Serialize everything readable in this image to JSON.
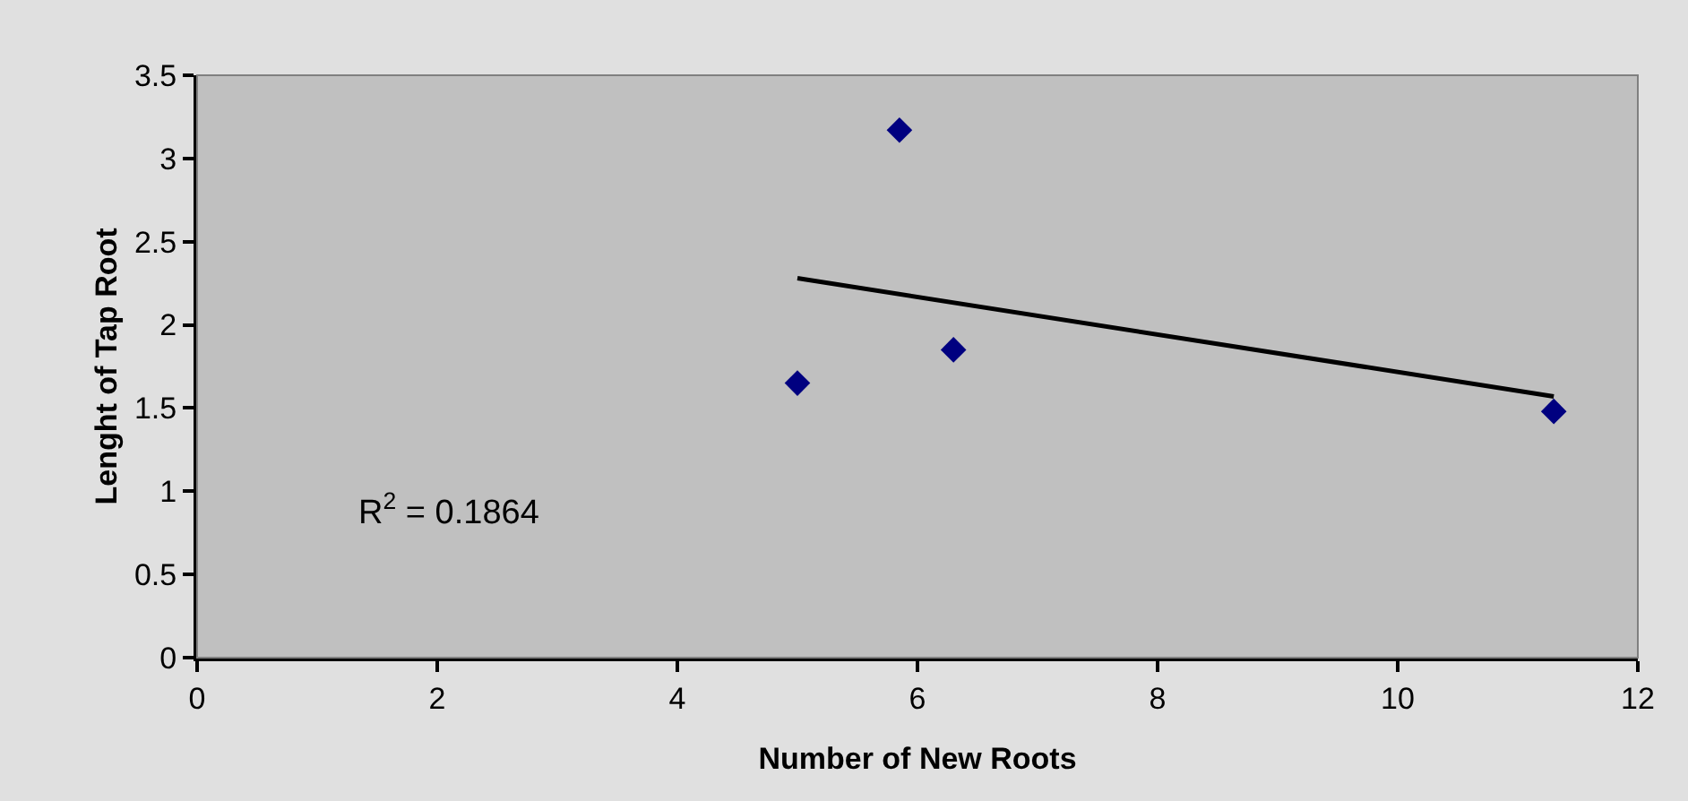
{
  "chart_data": {
    "type": "scatter",
    "xlabel": "Number of New Roots",
    "ylabel": "Lenght of Tap Root",
    "xlim": [
      0,
      12
    ],
    "xticks": [
      0,
      2,
      4,
      6,
      8,
      10,
      12
    ],
    "ylim": [
      0,
      3.5
    ],
    "yticks": [
      0,
      0.5,
      1,
      1.5,
      2,
      2.5,
      3,
      3.5
    ],
    "grid": false,
    "legend": false,
    "series": [
      {
        "marker": "diamond",
        "color": "#000080",
        "x": [
          5.0,
          5.85,
          6.3,
          11.3
        ],
        "values": [
          1.65,
          3.17,
          1.85,
          1.48
        ]
      },
      {
        "type": "line",
        "marker": "none",
        "color": "#000000",
        "x": [
          5.0,
          11.3
        ],
        "values": [
          2.28,
          1.57
        ]
      }
    ],
    "annotations": [
      "R$^{2}$ = 0.1864"
    ]
  }
}
